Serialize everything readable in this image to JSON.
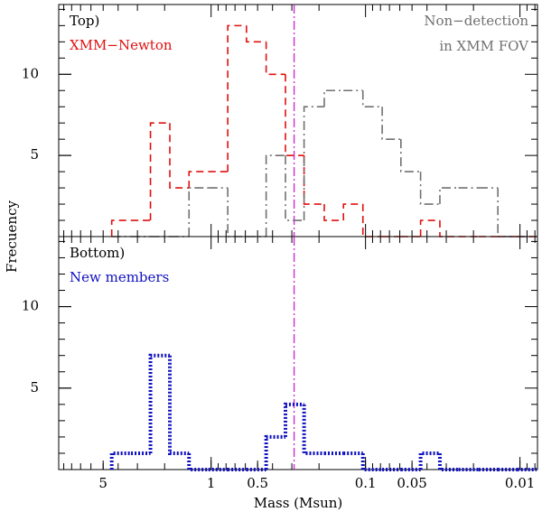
{
  "chart_data": [
    {
      "type": "histogram",
      "panel_label": "Top)",
      "ylabel": "Frecuency",
      "xscale": "log",
      "xlim": [
        9.7,
        0.0077
      ],
      "ylim": [
        0,
        14.3
      ],
      "yticks": [
        5,
        10
      ],
      "bins": [
        4.4,
        3.3,
        2.47,
        1.85,
        1.39,
        1.04,
        0.78,
        0.59,
        0.44,
        0.33,
        0.25,
        0.185,
        0.139,
        0.104,
        0.078,
        0.059,
        0.044,
        0.033,
        0.025,
        0.0185,
        0.0139,
        0.0104,
        0.0078
      ],
      "vline": {
        "value": 0.29,
        "color": "#d020d0"
      },
      "series": [
        {
          "name": [
            "XMM−Newton"
          ],
          "color": "#e01010",
          "style": "dashed",
          "values": [
            1,
            1,
            7,
            3,
            4,
            4,
            13,
            12,
            10,
            5,
            2,
            1,
            2,
            0,
            0,
            0,
            1,
            0,
            0,
            0,
            0,
            0
          ]
        },
        {
          "name": [
            "Non−detection",
            "in XMM FOV"
          ],
          "color": "#707070",
          "style": "dashdot",
          "values": [
            0,
            0,
            0,
            0,
            3,
            3,
            0,
            0,
            5,
            1,
            8,
            9,
            9,
            8,
            6,
            4,
            2,
            3,
            3,
            3,
            0,
            0
          ]
        }
      ]
    },
    {
      "type": "histogram",
      "panel_label": "Bottom)",
      "xlabel": "Mass (Msun)",
      "xscale": "log",
      "xlim": [
        9.7,
        0.0077
      ],
      "ylim": [
        0,
        14.3
      ],
      "yticks": [
        5,
        10
      ],
      "xticks": [
        5,
        1,
        0.5,
        0.1,
        0.05,
        0.01
      ],
      "bins": [
        4.4,
        3.3,
        2.47,
        1.85,
        1.39,
        1.04,
        0.78,
        0.59,
        0.44,
        0.33,
        0.25,
        0.185,
        0.139,
        0.104,
        0.078,
        0.059,
        0.044,
        0.033,
        0.025,
        0.0185,
        0.0139,
        0.0104,
        0.0078
      ],
      "vline": {
        "value": 0.29,
        "color": "#d020d0"
      },
      "series": [
        {
          "name": [
            "New members"
          ],
          "color": "#1010c0",
          "style": "dotted",
          "values": [
            1,
            1,
            7,
            1,
            0,
            0,
            0,
            0,
            2,
            4,
            1,
            1,
            1,
            0,
            0,
            0,
            1,
            0,
            0,
            0,
            0,
            0
          ]
        }
      ]
    }
  ]
}
